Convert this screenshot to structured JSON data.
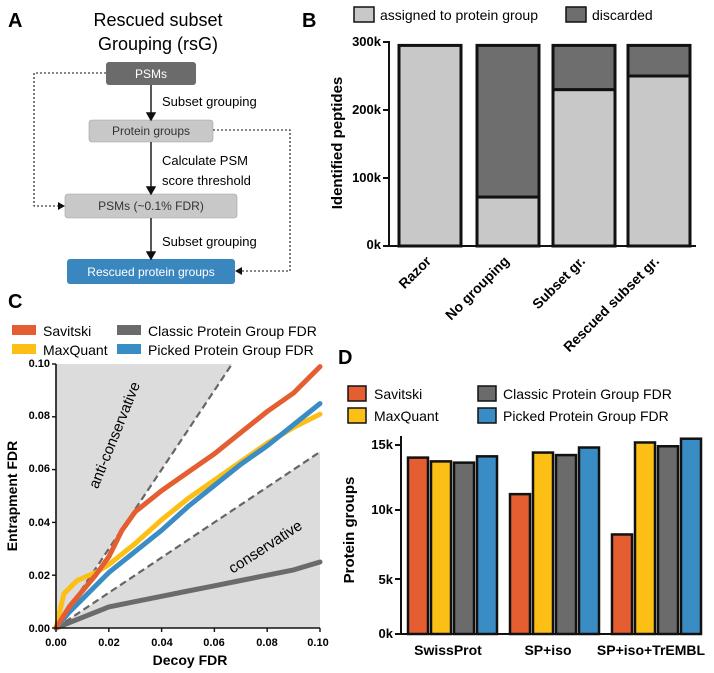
{
  "panel_labels": {
    "a": "A",
    "b": "B",
    "c": "C",
    "d": "D"
  },
  "colors": {
    "dark_box": "#6b6b6b",
    "light_box": "#c8c8c8",
    "blue_box": "#3a87c0",
    "assigned": "#c8c8c8",
    "discarded": "#6e6e6e",
    "savitski": "#e45e32",
    "maxquant": "#fbbf16",
    "classic": "#6b6b6b",
    "picked": "#3a8cc4",
    "shade": "#dcdcdc"
  },
  "flow": {
    "title_line1": "Rescued subset",
    "title_line2": "Grouping (rsG)",
    "nodes": [
      "PSMs",
      "Protein groups",
      "PSMs (~0.1% FDR)",
      "Rescued protein groups"
    ],
    "edge1": "Subset grouping",
    "edge2_line1": "Calculate PSM",
    "edge2_line2": "score threshold",
    "edge3": "Subset grouping"
  },
  "chart_data": [
    {
      "id": "B",
      "type": "bar",
      "stacked": true,
      "categories": [
        "Razor",
        "No grouping",
        "Subset gr.",
        "Rescued subset gr."
      ],
      "series": [
        {
          "name": "assigned to protein group",
          "values": [
            295000,
            72000,
            230000,
            250000
          ]
        },
        {
          "name": "discarded",
          "values": [
            0,
            223000,
            65000,
            45000
          ]
        }
      ],
      "ylabel": "Identified peptides",
      "ylim": [
        0,
        300000
      ],
      "yticks": [
        "0k",
        "100k",
        "200k",
        "300k"
      ],
      "legend": "top"
    },
    {
      "id": "C",
      "type": "line",
      "xlabel": "Decoy  FDR",
      "ylabel": "Entrapment  FDR",
      "xlim": [
        0,
        0.1
      ],
      "ylim": [
        0,
        0.1
      ],
      "xticks": [
        "0.00",
        "0.02",
        "0.04",
        "0.06",
        "0.08",
        "0.10"
      ],
      "yticks": [
        "0.00",
        "0.02",
        "0.04",
        "0.06",
        "0.08",
        "0.10"
      ],
      "region_labels": [
        "anti-conservative",
        "conservative"
      ],
      "reference_slopes": [
        1.5,
        0.667
      ],
      "series": [
        {
          "name": "Savitski",
          "x": [
            0,
            0.005,
            0.01,
            0.015,
            0.02,
            0.025,
            0.03,
            0.04,
            0.05,
            0.06,
            0.07,
            0.08,
            0.09,
            0.1
          ],
          "y": [
            0,
            0.008,
            0.014,
            0.02,
            0.027,
            0.037,
            0.044,
            0.052,
            0.059,
            0.066,
            0.074,
            0.082,
            0.089,
            0.099
          ]
        },
        {
          "name": "MaxQuant",
          "x": [
            0,
            0.003,
            0.008,
            0.015,
            0.02,
            0.03,
            0.04,
            0.05,
            0.06,
            0.07,
            0.08,
            0.09,
            0.1
          ],
          "y": [
            0,
            0.013,
            0.018,
            0.021,
            0.024,
            0.032,
            0.041,
            0.049,
            0.056,
            0.063,
            0.07,
            0.076,
            0.081
          ]
        },
        {
          "name": "Classic Protein Group FDR",
          "x": [
            0,
            0.005,
            0.01,
            0.02,
            0.03,
            0.04,
            0.05,
            0.06,
            0.07,
            0.08,
            0.09,
            0.1
          ],
          "y": [
            0,
            0.002,
            0.004,
            0.008,
            0.01,
            0.012,
            0.014,
            0.016,
            0.018,
            0.02,
            0.022,
            0.025
          ]
        },
        {
          "name": "Picked Protein Group FDR",
          "x": [
            0,
            0.005,
            0.01,
            0.02,
            0.03,
            0.04,
            0.05,
            0.06,
            0.07,
            0.08,
            0.09,
            0.1
          ],
          "y": [
            0,
            0.006,
            0.011,
            0.021,
            0.029,
            0.037,
            0.046,
            0.054,
            0.062,
            0.069,
            0.077,
            0.085
          ]
        }
      ]
    },
    {
      "id": "D",
      "type": "bar",
      "categories": [
        "SwissProt",
        "SP+iso",
        "SP+iso+TrEMBL"
      ],
      "series": [
        {
          "name": "Savitski",
          "values": [
            14000,
            11100,
            7900
          ]
        },
        {
          "name": "MaxQuant",
          "values": [
            13700,
            14400,
            15200
          ]
        },
        {
          "name": "Classic Protein Group FDR",
          "values": [
            13600,
            14200,
            14900
          ]
        },
        {
          "name": "Picked Protein Group FDR",
          "values": [
            14100,
            14800,
            15500
          ]
        }
      ],
      "ylabel": "Protein groups",
      "ylim": [
        0,
        16000
      ],
      "yticks": [
        "0k",
        "5k",
        "10k",
        "15k"
      ]
    }
  ]
}
